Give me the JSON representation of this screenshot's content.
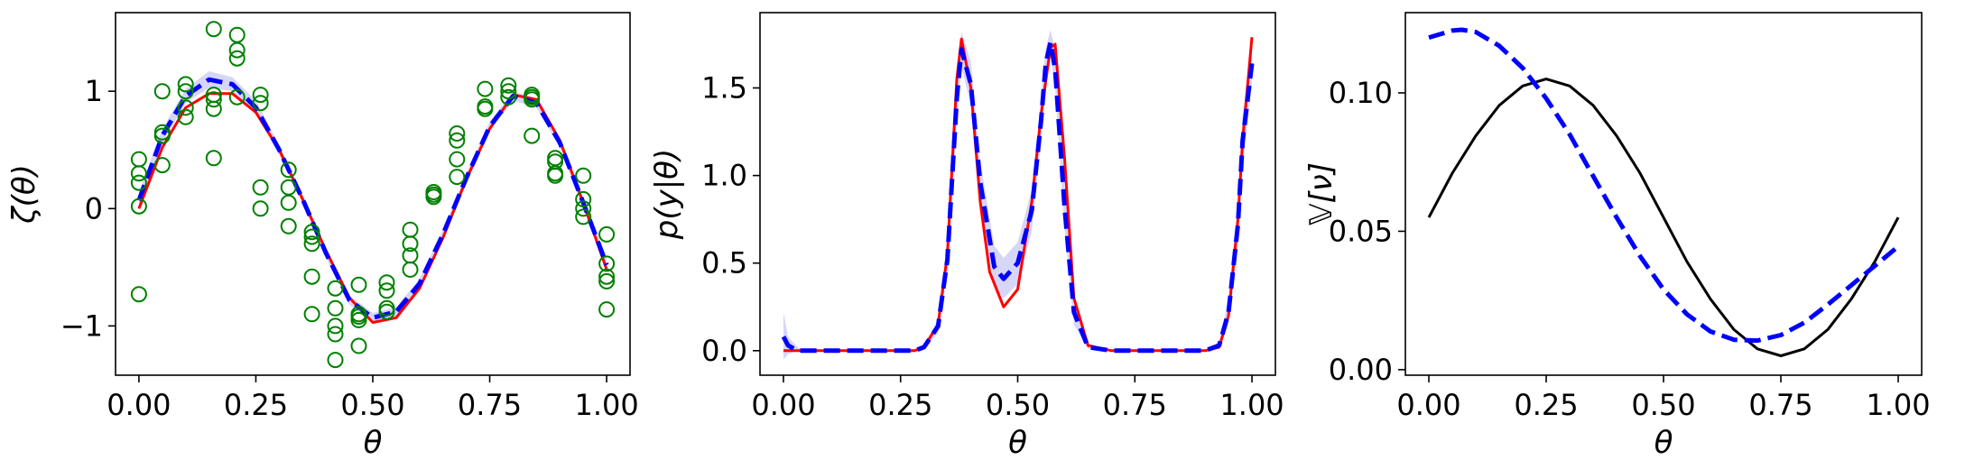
{
  "figure": {
    "panels": 3
  },
  "chart_data": [
    {
      "type": "line",
      "xlabel": "θ",
      "ylabel": "ζ(θ)",
      "xlim": [
        -0.05,
        1.05
      ],
      "ylim": [
        -1.42,
        1.67
      ],
      "xticks": [
        0.0,
        0.25,
        0.5,
        0.75,
        1.0
      ],
      "xtick_labels": [
        "0.00",
        "0.25",
        "0.50",
        "0.75",
        "1.00"
      ],
      "yticks": [
        -1,
        0,
        1
      ],
      "ytick_labels": [
        "−1",
        "0",
        "1"
      ],
      "grid": false,
      "series": [
        {
          "kind": "line",
          "color": "#ff0000",
          "style": "solid",
          "x": [
            0.0,
            0.05,
            0.1,
            0.15,
            0.2,
            0.25,
            0.3,
            0.35,
            0.4,
            0.45,
            0.5,
            0.55,
            0.6,
            0.65,
            0.7,
            0.75,
            0.8,
            0.85,
            0.9,
            0.95,
            1.0
          ],
          "y": [
            0.0,
            0.52,
            0.86,
            0.98,
            0.98,
            0.82,
            0.5,
            0.08,
            -0.36,
            -0.76,
            -0.97,
            -0.93,
            -0.68,
            -0.25,
            0.25,
            0.68,
            0.97,
            0.93,
            0.58,
            0.05,
            -0.52
          ]
        },
        {
          "kind": "line",
          "color": "#0000ff",
          "style": "dashed",
          "x": [
            0.0,
            0.05,
            0.1,
            0.15,
            0.2,
            0.25,
            0.3,
            0.35,
            0.4,
            0.45,
            0.5,
            0.55,
            0.6,
            0.65,
            0.7,
            0.75,
            0.8,
            0.85,
            0.9,
            0.95,
            1.0
          ],
          "y": [
            0.07,
            0.62,
            0.96,
            1.1,
            1.06,
            0.86,
            0.5,
            0.08,
            -0.38,
            -0.78,
            -0.93,
            -0.88,
            -0.64,
            -0.22,
            0.26,
            0.7,
            0.96,
            0.9,
            0.56,
            0.05,
            -0.48
          ]
        },
        {
          "kind": "band",
          "color": "#c8c8f5",
          "x": [
            0.0,
            0.05,
            0.1,
            0.15,
            0.2,
            0.25,
            0.3,
            0.35,
            0.4,
            0.45,
            0.5,
            0.55,
            0.6,
            0.65,
            0.7,
            0.75,
            0.8,
            0.85,
            0.9,
            0.95,
            1.0
          ],
          "y_low": [
            0.0,
            0.56,
            0.9,
            1.03,
            1.0,
            0.8,
            0.46,
            0.04,
            -0.42,
            -0.82,
            -0.97,
            -0.92,
            -0.68,
            -0.26,
            0.22,
            0.66,
            0.92,
            0.86,
            0.52,
            0.01,
            -0.54
          ],
          "y_high": [
            0.14,
            0.68,
            1.02,
            1.17,
            1.12,
            0.92,
            0.54,
            0.12,
            -0.34,
            -0.74,
            -0.89,
            -0.84,
            -0.6,
            -0.18,
            0.3,
            0.74,
            1.0,
            0.94,
            0.6,
            0.09,
            -0.42
          ]
        },
        {
          "kind": "scatter",
          "color": "#008000",
          "marker": "open-circle",
          "x": [
            0.0,
            0.0,
            0.0,
            0.0,
            0.0,
            0.05,
            0.05,
            0.05,
            0.05,
            0.1,
            0.1,
            0.1,
            0.1,
            0.16,
            0.16,
            0.16,
            0.16,
            0.16,
            0.21,
            0.21,
            0.21,
            0.21,
            0.26,
            0.26,
            0.26,
            0.26,
            0.32,
            0.32,
            0.32,
            0.32,
            0.37,
            0.37,
            0.37,
            0.37,
            0.37,
            0.42,
            0.42,
            0.42,
            0.42,
            0.42,
            0.47,
            0.47,
            0.47,
            0.47,
            0.47,
            0.53,
            0.53,
            0.53,
            0.53,
            0.58,
            0.58,
            0.58,
            0.58,
            0.63,
            0.63,
            0.63,
            0.68,
            0.68,
            0.68,
            0.68,
            0.74,
            0.74,
            0.74,
            0.79,
            0.79,
            0.79,
            0.84,
            0.84,
            0.84,
            0.84,
            0.89,
            0.89,
            0.89,
            0.89,
            0.95,
            0.95,
            0.95,
            0.95,
            1.0,
            1.0,
            1.0,
            1.0,
            1.0
          ],
          "y": [
            0.02,
            0.22,
            0.3,
            0.42,
            -0.73,
            0.37,
            0.62,
            0.65,
            1.0,
            0.78,
            0.86,
            1.0,
            1.06,
            0.43,
            0.85,
            0.93,
            0.97,
            1.53,
            0.95,
            1.35,
            1.28,
            1.48,
            0.0,
            0.18,
            0.9,
            0.97,
            -0.15,
            0.05,
            0.18,
            0.33,
            -0.2,
            -0.3,
            -0.24,
            -0.58,
            -0.9,
            -0.68,
            -1.0,
            -1.07,
            -0.85,
            -1.29,
            -0.65,
            -0.9,
            -0.92,
            -0.95,
            -1.17,
            -0.7,
            -0.85,
            -0.88,
            -0.63,
            -0.18,
            -0.3,
            -0.4,
            -0.52,
            0.1,
            0.14,
            0.12,
            0.27,
            0.42,
            0.58,
            0.64,
            0.85,
            0.87,
            1.02,
            0.95,
            1.0,
            1.05,
            0.93,
            0.97,
            0.95,
            0.62,
            0.28,
            0.4,
            0.43,
            0.3,
            0.0,
            0.08,
            -0.07,
            0.28,
            -0.22,
            -0.47,
            -0.58,
            -0.62,
            -0.86
          ]
        }
      ]
    },
    {
      "type": "line",
      "xlabel": "θ",
      "ylabel": "p(y|θ)",
      "xlim": [
        -0.05,
        1.05
      ],
      "ylim": [
        -0.14,
        1.93
      ],
      "xticks": [
        0.0,
        0.25,
        0.5,
        0.75,
        1.0
      ],
      "xtick_labels": [
        "0.00",
        "0.25",
        "0.50",
        "0.75",
        "1.00"
      ],
      "yticks": [
        0.0,
        0.5,
        1.0,
        1.5
      ],
      "ytick_labels": [
        "0.0",
        "0.5",
        "1.0",
        "1.5"
      ],
      "grid": false,
      "series": [
        {
          "kind": "band",
          "color": "#c8c8f5",
          "x": [
            0.0,
            0.01,
            0.03,
            0.05,
            0.1,
            0.2,
            0.28,
            0.3,
            0.33,
            0.35,
            0.37,
            0.38,
            0.4,
            0.42,
            0.45,
            0.47,
            0.5,
            0.53,
            0.55,
            0.56,
            0.57,
            0.58,
            0.6,
            0.62,
            0.65,
            0.7,
            0.8,
            0.9,
            0.93,
            0.95,
            0.97,
            0.98,
            1.0
          ],
          "y_low": [
            -0.05,
            -0.02,
            0.0,
            0.0,
            0.0,
            0.0,
            0.0,
            0.01,
            0.1,
            0.45,
            1.3,
            1.62,
            1.4,
            0.85,
            0.36,
            0.3,
            0.38,
            0.68,
            1.2,
            1.55,
            1.68,
            1.5,
            0.7,
            0.15,
            0.01,
            0.0,
            0.0,
            0.0,
            0.01,
            0.15,
            0.6,
            1.05,
            1.52
          ],
          "y_high": [
            0.22,
            0.08,
            0.02,
            0.0,
            0.0,
            0.0,
            0.0,
            0.03,
            0.18,
            0.6,
            1.58,
            1.82,
            1.65,
            1.08,
            0.6,
            0.53,
            0.62,
            0.92,
            1.45,
            1.73,
            1.83,
            1.72,
            0.95,
            0.3,
            0.04,
            0.0,
            0.0,
            0.0,
            0.05,
            0.3,
            0.85,
            1.35,
            1.72
          ]
        },
        {
          "kind": "line",
          "color": "#ff0000",
          "style": "solid",
          "x": [
            0.0,
            0.05,
            0.1,
            0.2,
            0.28,
            0.3,
            0.33,
            0.35,
            0.37,
            0.38,
            0.4,
            0.42,
            0.44,
            0.47,
            0.5,
            0.53,
            0.55,
            0.57,
            0.58,
            0.6,
            0.62,
            0.65,
            0.7,
            0.8,
            0.9,
            0.93,
            0.95,
            0.97,
            0.98,
            1.0
          ],
          "y": [
            0.0,
            0.0,
            0.0,
            0.0,
            0.0,
            0.02,
            0.15,
            0.55,
            1.55,
            1.78,
            1.5,
            0.85,
            0.45,
            0.25,
            0.35,
            0.85,
            1.35,
            1.73,
            1.75,
            1.1,
            0.3,
            0.03,
            0.0,
            0.0,
            0.0,
            0.02,
            0.2,
            0.75,
            1.2,
            1.79
          ]
        },
        {
          "kind": "line",
          "color": "#0000ff",
          "style": "dashed",
          "x": [
            0.0,
            0.01,
            0.03,
            0.05,
            0.1,
            0.2,
            0.28,
            0.3,
            0.33,
            0.35,
            0.37,
            0.38,
            0.4,
            0.42,
            0.45,
            0.47,
            0.5,
            0.53,
            0.55,
            0.56,
            0.57,
            0.58,
            0.6,
            0.62,
            0.65,
            0.7,
            0.8,
            0.9,
            0.93,
            0.95,
            0.97,
            0.98,
            1.0
          ],
          "y": [
            0.08,
            0.03,
            0.0,
            0.0,
            0.0,
            0.0,
            0.0,
            0.02,
            0.14,
            0.52,
            1.44,
            1.72,
            1.52,
            0.96,
            0.48,
            0.41,
            0.5,
            0.8,
            1.32,
            1.64,
            1.76,
            1.61,
            0.82,
            0.22,
            0.02,
            0.0,
            0.0,
            0.0,
            0.03,
            0.22,
            0.72,
            1.2,
            1.64
          ]
        }
      ]
    },
    {
      "type": "line",
      "xlabel": "θ",
      "ylabel": "𝕍[ν]",
      "xlim": [
        -0.05,
        1.05
      ],
      "ylim": [
        -0.002,
        0.129
      ],
      "xticks": [
        0.0,
        0.25,
        0.5,
        0.75,
        1.0
      ],
      "xtick_labels": [
        "0.00",
        "0.25",
        "0.50",
        "0.75",
        "1.00"
      ],
      "yticks": [
        0.0,
        0.05,
        0.1
      ],
      "ytick_labels": [
        "0.00",
        "0.05",
        "0.10"
      ],
      "grid": false,
      "series": [
        {
          "kind": "line",
          "color": "#000000",
          "style": "solid",
          "x": [
            0.0,
            0.05,
            0.1,
            0.15,
            0.2,
            0.25,
            0.3,
            0.35,
            0.4,
            0.45,
            0.5,
            0.55,
            0.6,
            0.65,
            0.7,
            0.75,
            0.8,
            0.85,
            0.9,
            0.95,
            1.0
          ],
          "y": [
            0.055,
            0.071,
            0.0845,
            0.0955,
            0.1025,
            0.105,
            0.1025,
            0.0955,
            0.0845,
            0.071,
            0.055,
            0.039,
            0.0255,
            0.0145,
            0.0075,
            0.005,
            0.0075,
            0.0145,
            0.0255,
            0.039,
            0.055
          ]
        },
        {
          "kind": "line",
          "color": "#0000ff",
          "style": "dashed",
          "x": [
            0.0,
            0.05,
            0.07,
            0.1,
            0.15,
            0.2,
            0.25,
            0.3,
            0.35,
            0.4,
            0.45,
            0.5,
            0.55,
            0.6,
            0.65,
            0.7,
            0.75,
            0.8,
            0.85,
            0.9,
            0.95,
            1.0
          ],
          "y": [
            0.12,
            0.1225,
            0.1228,
            0.122,
            0.117,
            0.109,
            0.098,
            0.085,
            0.07,
            0.055,
            0.041,
            0.029,
            0.02,
            0.0138,
            0.0108,
            0.0105,
            0.0125,
            0.017,
            0.0235,
            0.0305,
            0.0375,
            0.0445
          ]
        }
      ]
    }
  ]
}
